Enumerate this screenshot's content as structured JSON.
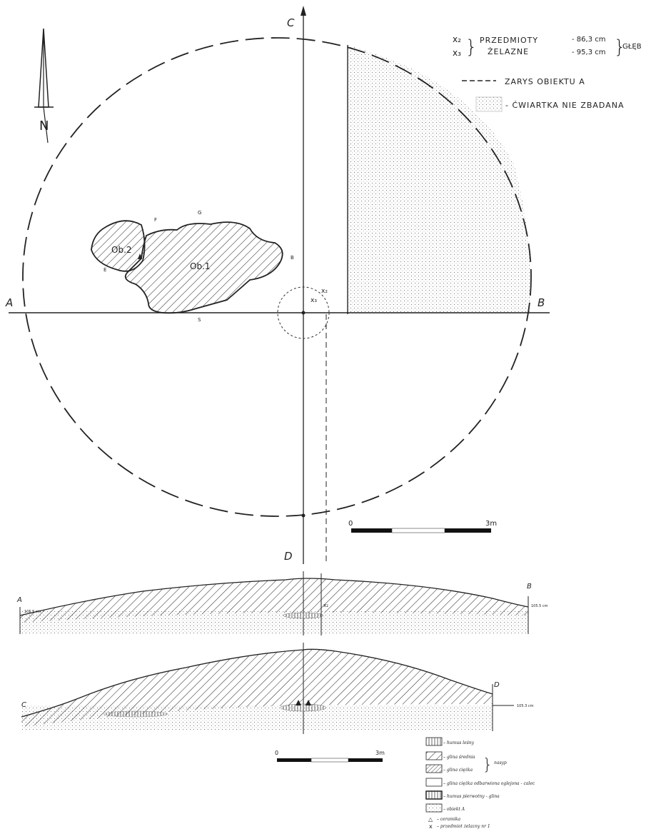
{
  "axes": {
    "a": "A",
    "b": "B",
    "c": "C",
    "d": "D"
  },
  "features": {
    "ob1": "Ob.1",
    "ob2": "Ob.2",
    "f": "F",
    "g": "G",
    "e": "E",
    "b_small": "B",
    "s_small": "S"
  },
  "finds": {
    "x2": "x₂",
    "x3": "x₃"
  },
  "header_legend": {
    "x2": "x₂",
    "x3": "x₃",
    "items_line1": "PRZEDMIOTY",
    "items_line2": "ŻELAZNE",
    "depth1": "- 86,3 cm",
    "depth2": "- 95,3 cm",
    "depth_label": "GŁĘB",
    "outline_label": "ZARYS OBIEKTU A",
    "quarter_label": "- ĆWIARTKA NIE ZBADANA"
  },
  "north": {
    "label": "N"
  },
  "scale_top": {
    "start": "0",
    "end": "3m"
  },
  "scale_bottom": {
    "start": "0",
    "end": "3m"
  },
  "section_ab": {
    "left": "A",
    "right": "B",
    "left_depth": "105.5 cm",
    "right_depth": "105.5 cm",
    "find_label": "x₂"
  },
  "section_cd": {
    "left": "C",
    "right": "D",
    "right_depth": "105.3 cm"
  },
  "soil_legend": {
    "humus": "– humus leśny",
    "medium_clay": "– glina średnia",
    "heavy_clay": "– glina ciężka",
    "group": "nasyp",
    "subsoil": "– glina ciężka odbarwiona oglejona - calec",
    "primary_humus": "– humus pierwotny - glina",
    "object": "– obiekt   A",
    "ceramics": "– ceramika",
    "iron": "– przedmiot żelazny nr 1",
    "ceramics_symbol": "△",
    "iron_symbol": "x"
  }
}
